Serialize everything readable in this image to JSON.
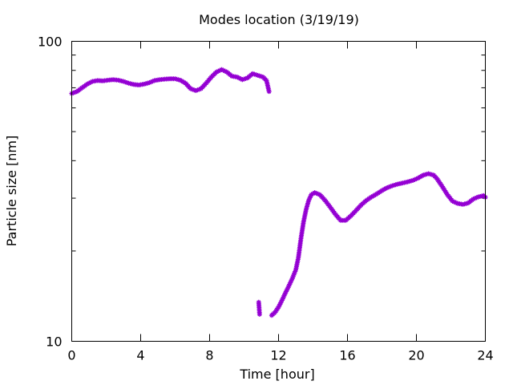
{
  "chart_data": {
    "type": "scatter",
    "title": "Modes location (3/19/19)",
    "xlabel": "Time [hour]",
    "ylabel": "Particle size [nm]",
    "xlim": [
      0,
      24
    ],
    "ylim": [
      10,
      100
    ],
    "yscale": "log",
    "grid": false,
    "legend": "none",
    "x_ticks": [
      {
        "value": 0,
        "label": "0"
      },
      {
        "value": 4,
        "label": "4"
      },
      {
        "value": 8,
        "label": "8"
      },
      {
        "value": 12,
        "label": "12"
      },
      {
        "value": 16,
        "label": "16"
      },
      {
        "value": 20,
        "label": "20"
      },
      {
        "value": 24,
        "label": "24"
      }
    ],
    "y_ticks": [
      {
        "value": 10,
        "label": "10"
      },
      {
        "value": 100,
        "label": "100"
      }
    ],
    "y_minor_ticks": [
      20,
      30,
      40,
      50,
      60,
      70,
      80,
      90
    ],
    "series": [
      {
        "color": "#9400d3",
        "marker": "asterisk",
        "segments": [
          [
            [
              0,
              67
            ],
            [
              0.3,
              68
            ],
            [
              0.6,
              70
            ],
            [
              0.9,
              72
            ],
            [
              1.2,
              73.5
            ],
            [
              1.5,
              74
            ],
            [
              1.8,
              73.8
            ],
            [
              2.1,
              74.2
            ],
            [
              2.4,
              74.5
            ],
            [
              2.7,
              74.2
            ],
            [
              3.0,
              73.5
            ],
            [
              3.3,
              72.5
            ],
            [
              3.6,
              71.8
            ],
            [
              3.9,
              71.5
            ],
            [
              4.2,
              72
            ],
            [
              4.5,
              72.8
            ],
            [
              4.8,
              74
            ],
            [
              5.1,
              74.5
            ],
            [
              5.4,
              74.8
            ],
            [
              5.7,
              75
            ],
            [
              6.0,
              75
            ],
            [
              6.3,
              74.2
            ],
            [
              6.6,
              72.5
            ],
            [
              6.9,
              69.5
            ],
            [
              7.2,
              68.5
            ],
            [
              7.5,
              69.5
            ],
            [
              7.8,
              72.5
            ],
            [
              8.1,
              76
            ],
            [
              8.4,
              79
            ],
            [
              8.7,
              80.5
            ],
            [
              9.0,
              79
            ],
            [
              9.3,
              76.5
            ],
            [
              9.6,
              76
            ],
            [
              9.9,
              74.5
            ],
            [
              10.2,
              75.5
            ],
            [
              10.5,
              78
            ],
            [
              10.8,
              77
            ],
            [
              11.1,
              76
            ],
            [
              11.3,
              74
            ],
            [
              11.45,
              68
            ]
          ],
          [
            [
              10.85,
              13.5
            ],
            [
              10.9,
              12.3
            ]
          ],
          [
            [
              11.6,
              12.2
            ],
            [
              11.8,
              12.5
            ],
            [
              12.0,
              13
            ],
            [
              12.2,
              13.7
            ],
            [
              12.4,
              14.5
            ],
            [
              12.6,
              15.3
            ],
            [
              12.8,
              16.2
            ],
            [
              13.0,
              17.3
            ],
            [
              13.15,
              19
            ],
            [
              13.3,
              22
            ],
            [
              13.45,
              25
            ],
            [
              13.6,
              27.5
            ],
            [
              13.75,
              29.5
            ],
            [
              13.9,
              30.8
            ],
            [
              14.1,
              31.3
            ],
            [
              14.4,
              30.8
            ],
            [
              14.7,
              29.5
            ],
            [
              15.0,
              28
            ],
            [
              15.3,
              26.5
            ],
            [
              15.6,
              25.3
            ],
            [
              15.9,
              25.3
            ],
            [
              16.2,
              26.2
            ],
            [
              16.5,
              27.3
            ],
            [
              16.8,
              28.5
            ],
            [
              17.1,
              29.5
            ],
            [
              17.4,
              30.3
            ],
            [
              17.7,
              31
            ],
            [
              18.0,
              31.8
            ],
            [
              18.3,
              32.5
            ],
            [
              18.6,
              33
            ],
            [
              18.9,
              33.4
            ],
            [
              19.2,
              33.7
            ],
            [
              19.5,
              34
            ],
            [
              19.8,
              34.4
            ],
            [
              20.1,
              35
            ],
            [
              20.4,
              35.8
            ],
            [
              20.7,
              36.2
            ],
            [
              21.0,
              35.8
            ],
            [
              21.2,
              34.8
            ],
            [
              21.5,
              32.8
            ],
            [
              21.8,
              30.8
            ],
            [
              22.1,
              29.3
            ],
            [
              22.4,
              28.8
            ],
            [
              22.7,
              28.6
            ],
            [
              23.0,
              28.9
            ],
            [
              23.3,
              29.8
            ],
            [
              23.6,
              30.3
            ],
            [
              23.9,
              30.6
            ],
            [
              24.0,
              30.2
            ]
          ]
        ]
      }
    ]
  }
}
